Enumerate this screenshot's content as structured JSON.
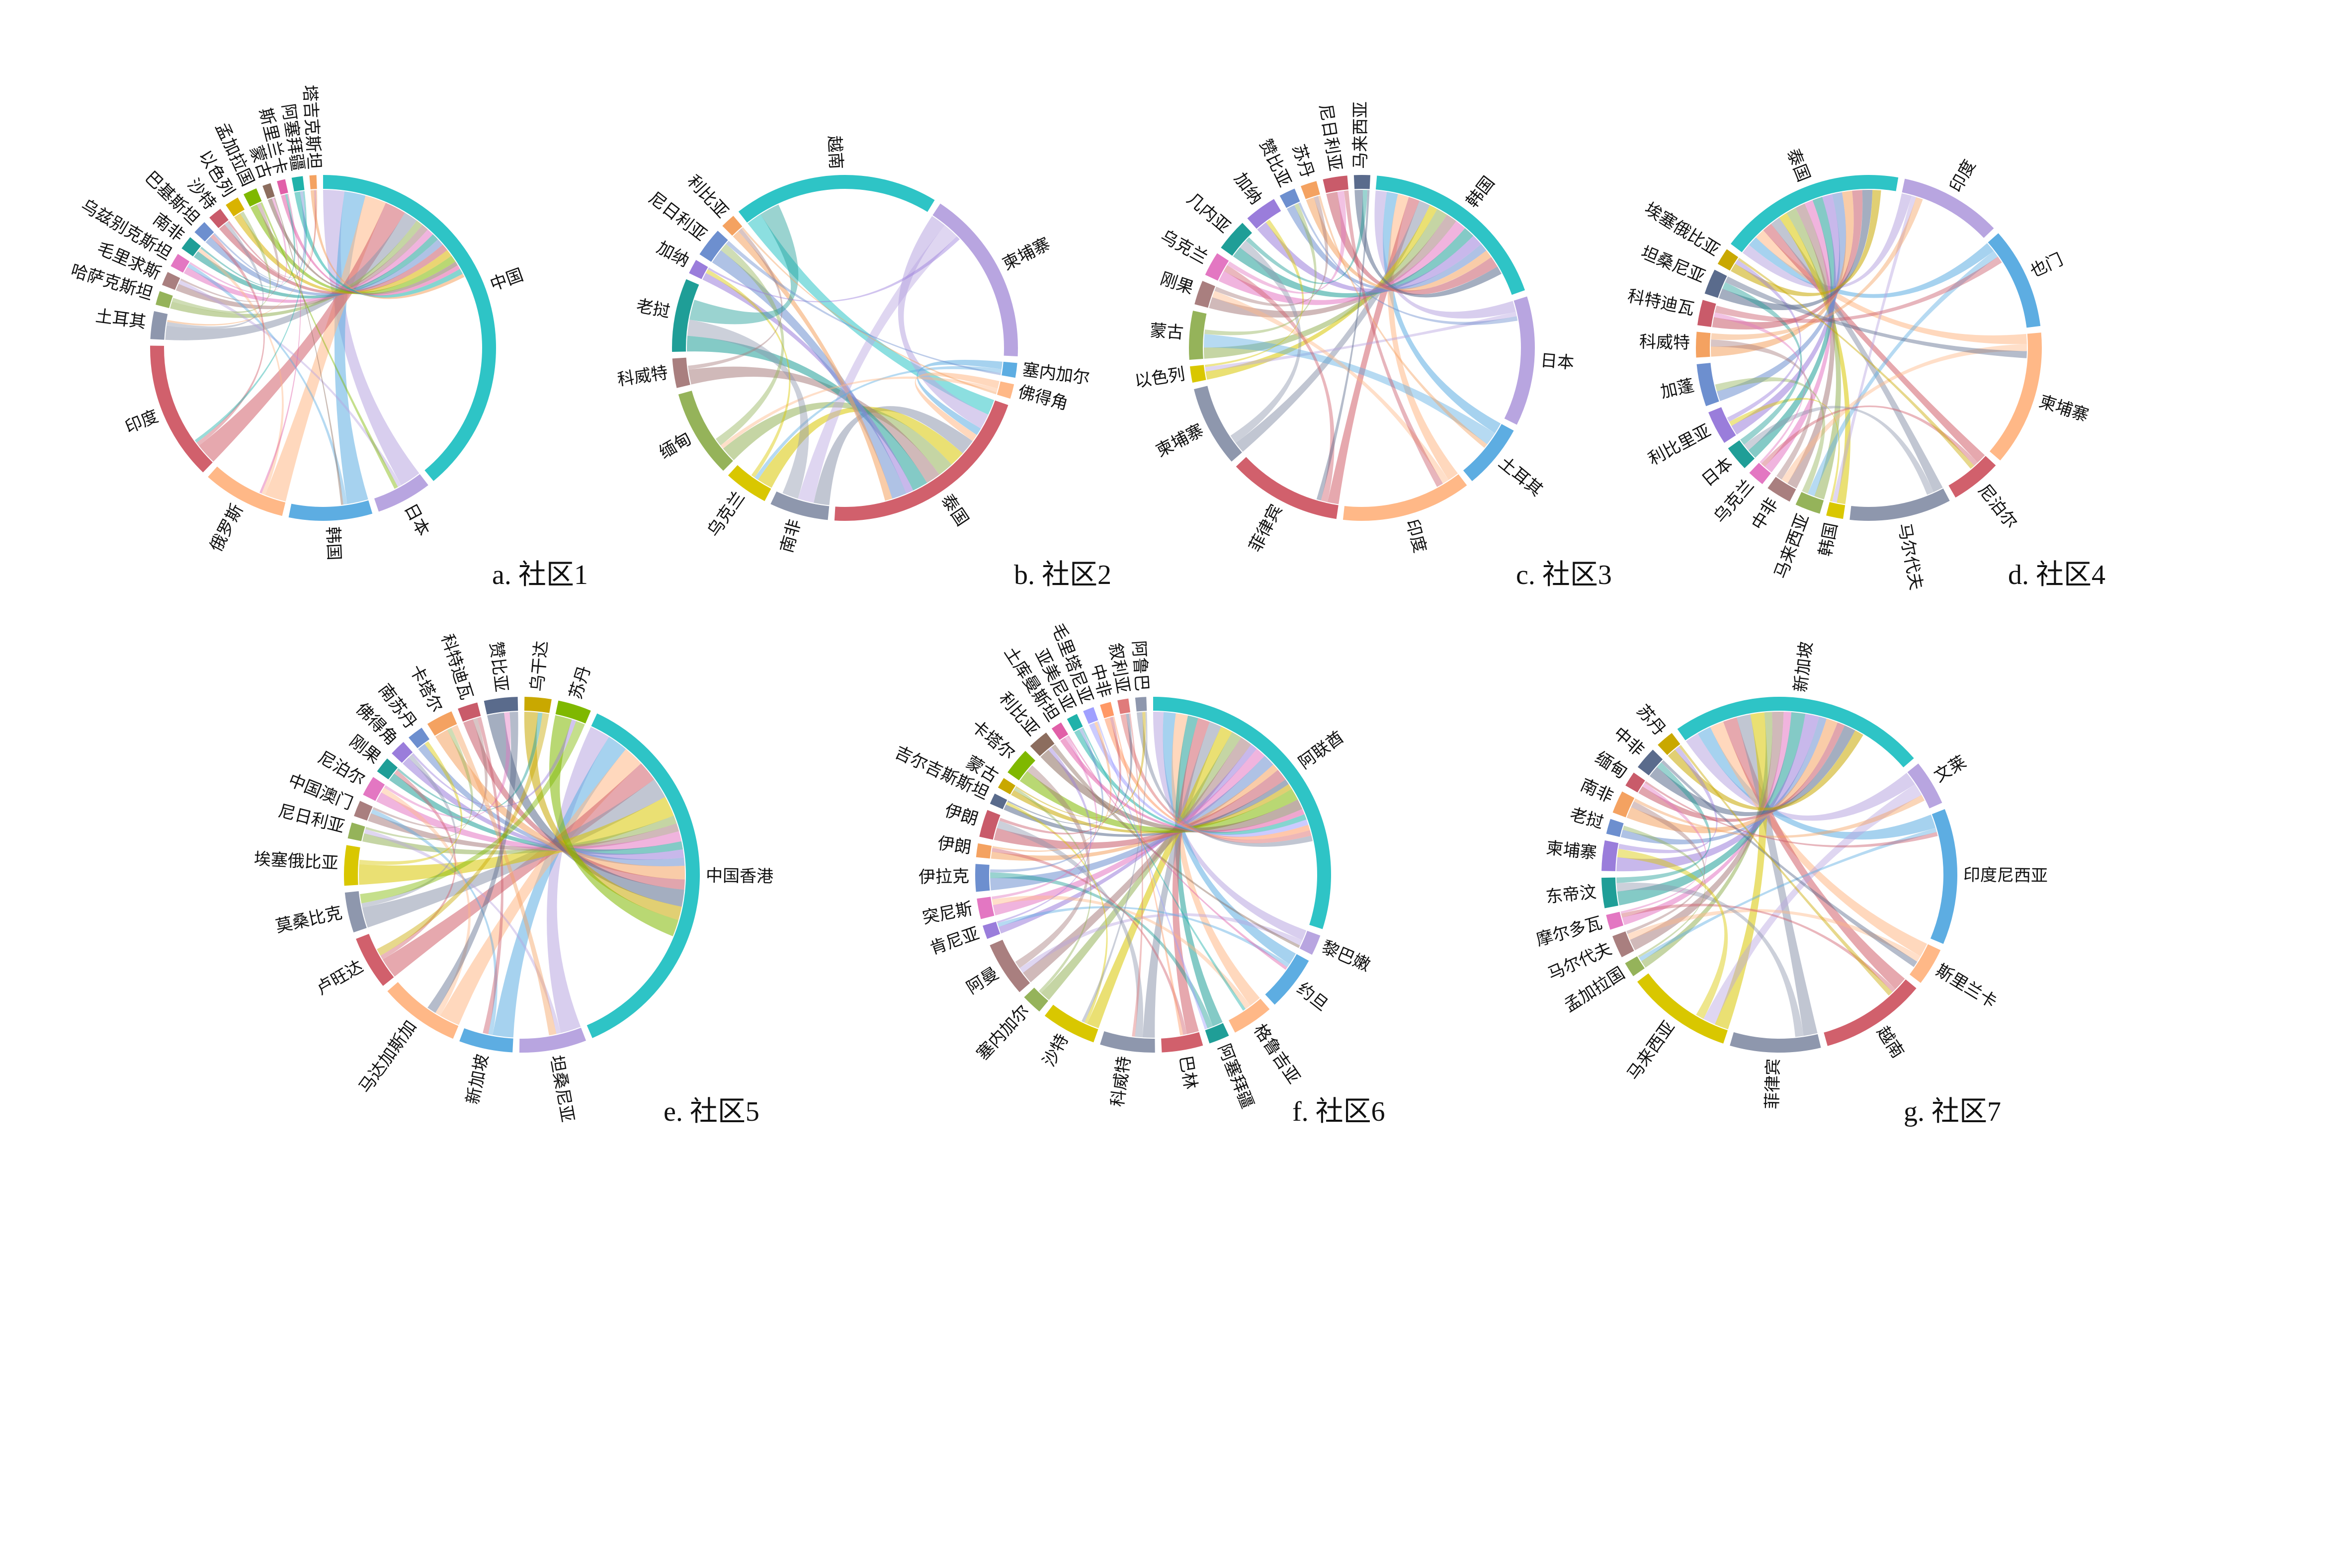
{
  "chart_data": [
    {
      "type": "chord",
      "caption": "a. 社区1",
      "nodes": [
        {
          "name": "中国",
          "value": 30,
          "color": "#2ec4c6"
        },
        {
          "name": "日本",
          "value": 4,
          "color": "#b8a5e0"
        },
        {
          "name": "韩国",
          "value": 6,
          "color": "#5dade2"
        },
        {
          "name": "俄罗斯",
          "value": 6,
          "color": "#ffb887"
        },
        {
          "name": "印度",
          "value": 10,
          "color": "#d1606c"
        },
        {
          "name": "土耳其",
          "value": 2,
          "color": "#8e97ad"
        },
        {
          "name": "哈萨克斯坦",
          "value": 1,
          "color": "#95b35a"
        },
        {
          "name": "毛里求斯",
          "value": 1,
          "color": "#a97f7f"
        },
        {
          "name": "乌兹别克斯坦",
          "value": 1,
          "color": "#e377c2"
        },
        {
          "name": "南非",
          "value": 1,
          "color": "#1f9e97"
        },
        {
          "name": "巴基斯坦",
          "value": 1,
          "color": "#6d8fcf"
        },
        {
          "name": "沙特",
          "value": 1,
          "color": "#c95b6a"
        },
        {
          "name": "以色列",
          "value": 1,
          "color": "#d9b300"
        },
        {
          "name": "孟加拉国",
          "value": 1,
          "color": "#7fb800"
        },
        {
          "name": "蒙古",
          "value": 0.6,
          "color": "#8c6d5e"
        },
        {
          "name": "斯里兰卡",
          "value": 0.6,
          "color": "#e15fa8"
        },
        {
          "name": "阿塞拜疆",
          "value": 0.8,
          "color": "#20b2aa"
        },
        {
          "name": "塔吉克斯坦",
          "value": 0.5,
          "color": "#f4a261"
        }
      ]
    },
    {
      "type": "chord",
      "caption": "b. 社区2",
      "nodes": [
        {
          "name": "越南",
          "value": 14,
          "color": "#2ec4c6"
        },
        {
          "name": "柬埔寨",
          "value": 12,
          "color": "#b8a5e0"
        },
        {
          "name": "塞内加尔",
          "value": 1,
          "color": "#5dade2"
        },
        {
          "name": "佛得角",
          "value": 1,
          "color": "#ffb887"
        },
        {
          "name": "泰国",
          "value": 15,
          "color": "#d1606c"
        },
        {
          "name": "南非",
          "value": 4,
          "color": "#8e97ad"
        },
        {
          "name": "乌克兰",
          "value": 3,
          "color": "#d9c700"
        },
        {
          "name": "缅甸",
          "value": 6,
          "color": "#95b35a"
        },
        {
          "name": "科威特",
          "value": 2,
          "color": "#a97f7f"
        },
        {
          "name": "老挝",
          "value": 5,
          "color": "#1f9e97"
        },
        {
          "name": "加纳",
          "value": 1,
          "color": "#9a7ddb"
        },
        {
          "name": "尼日利亚",
          "value": 2,
          "color": "#6d8fcf"
        },
        {
          "name": "利比亚",
          "value": 1,
          "color": "#f4a261"
        }
      ]
    },
    {
      "type": "chord",
      "caption": "c. 社区3",
      "nodes": [
        {
          "name": "韩国",
          "value": 12,
          "color": "#2ec4c6"
        },
        {
          "name": "日本",
          "value": 8,
          "color": "#b8a5e0"
        },
        {
          "name": "土耳其",
          "value": 4,
          "color": "#5dade2"
        },
        {
          "name": "印度",
          "value": 8,
          "color": "#ffb887"
        },
        {
          "name": "菲律宾",
          "value": 7,
          "color": "#d1606c"
        },
        {
          "name": "柬埔寨",
          "value": 5,
          "color": "#8e97ad"
        },
        {
          "name": "以色列",
          "value": 1,
          "color": "#d9c700"
        },
        {
          "name": "蒙古",
          "value": 3,
          "color": "#95b35a"
        },
        {
          "name": "刚果",
          "value": 1.5,
          "color": "#a97f7f"
        },
        {
          "name": "乌克兰",
          "value": 1.5,
          "color": "#e377c2"
        },
        {
          "name": "几内亚",
          "value": 2,
          "color": "#1f9e97"
        },
        {
          "name": "加纳",
          "value": 2,
          "color": "#9a7ddb"
        },
        {
          "name": "赞比亚",
          "value": 1,
          "color": "#6d8fcf"
        },
        {
          "name": "苏丹",
          "value": 1,
          "color": "#f4a261"
        },
        {
          "name": "尼日利亚",
          "value": 1.5,
          "color": "#c95b6a"
        },
        {
          "name": "马来西亚",
          "value": 1,
          "color": "#5a6b8c"
        }
      ]
    },
    {
      "type": "chord",
      "caption": "d. 社区4",
      "nodes": [
        {
          "name": "印度",
          "value": 6,
          "color": "#b8a5e0"
        },
        {
          "name": "也门",
          "value": 6,
          "color": "#5dade2"
        },
        {
          "name": "柬埔寨",
          "value": 8,
          "color": "#ffb887"
        },
        {
          "name": "尼泊尔",
          "value": 3,
          "color": "#d1606c"
        },
        {
          "name": "马尔代夫",
          "value": 6,
          "color": "#8e97ad"
        },
        {
          "name": "韩国",
          "value": 1,
          "color": "#d9c700"
        },
        {
          "name": "马来西亚",
          "value": 1.5,
          "color": "#95b35a"
        },
        {
          "name": "中非",
          "value": 1.5,
          "color": "#a97f7f"
        },
        {
          "name": "乌克兰",
          "value": 1,
          "color": "#e377c2"
        },
        {
          "name": "日本",
          "value": 1.5,
          "color": "#1f9e97"
        },
        {
          "name": "利比里亚",
          "value": 2,
          "color": "#9a7ddb"
        },
        {
          "name": "加蓬",
          "value": 2.5,
          "color": "#6d8fcf"
        },
        {
          "name": "科威特",
          "value": 1.5,
          "color": "#f4a261"
        },
        {
          "name": "科特迪瓦",
          "value": 1.5,
          "color": "#c95b6a"
        },
        {
          "name": "坦桑尼亚",
          "value": 1.5,
          "color": "#5a6b8c"
        },
        {
          "name": "埃塞俄比亚",
          "value": 1,
          "color": "#c9a800"
        },
        {
          "name": "泰国",
          "value": 11,
          "color": "#2ec4c6"
        }
      ]
    },
    {
      "type": "chord",
      "caption": "e. 社区5",
      "nodes": [
        {
          "name": "中国香港",
          "value": 30,
          "color": "#2ec4c6"
        },
        {
          "name": "坦桑尼亚",
          "value": 5,
          "color": "#b8a5e0"
        },
        {
          "name": "新加坡",
          "value": 4,
          "color": "#5dade2"
        },
        {
          "name": "马达加斯加",
          "value": 6,
          "color": "#ffb887"
        },
        {
          "name": "卢旺达",
          "value": 4,
          "color": "#d1606c"
        },
        {
          "name": "莫桑比克",
          "value": 3,
          "color": "#8e97ad"
        },
        {
          "name": "埃塞俄比亚",
          "value": 3,
          "color": "#d9c700"
        },
        {
          "name": "尼日利亚",
          "value": 1.2,
          "color": "#95b35a"
        },
        {
          "name": "中国澳门",
          "value": 1.2,
          "color": "#a97f7f"
        },
        {
          "name": "尼泊尔",
          "value": 1.5,
          "color": "#e377c2"
        },
        {
          "name": "刚果",
          "value": 1.2,
          "color": "#1f9e97"
        },
        {
          "name": "佛得角",
          "value": 1.2,
          "color": "#9a7ddb"
        },
        {
          "name": "南苏丹",
          "value": 1.2,
          "color": "#6d8fcf"
        },
        {
          "name": "卡塔尔",
          "value": 2,
          "color": "#f4a261"
        },
        {
          "name": "科特迪瓦",
          "value": 1.5,
          "color": "#c95b6a"
        },
        {
          "name": "赞比亚",
          "value": 2.5,
          "color": "#5a6b8c"
        },
        {
          "name": "乌干达",
          "value": 2,
          "color": "#c9a800"
        },
        {
          "name": "苏丹",
          "value": 2.5,
          "color": "#7fb800"
        }
      ]
    },
    {
      "type": "chord",
      "caption": "f. 社区6",
      "nodes": [
        {
          "name": "阿联酋",
          "value": 24,
          "color": "#2ec4c6"
        },
        {
          "name": "黎巴嫩",
          "value": 1.5,
          "color": "#b8a5e0"
        },
        {
          "name": "约旦",
          "value": 4,
          "color": "#5dade2"
        },
        {
          "name": "格鲁吉亚",
          "value": 3,
          "color": "#ffb887"
        },
        {
          "name": "阿塞拜疆",
          "value": 1.5,
          "color": "#1f9e97"
        },
        {
          "name": "巴林",
          "value": 3,
          "color": "#d1606c"
        },
        {
          "name": "科威特",
          "value": 4,
          "color": "#8e97ad"
        },
        {
          "name": "沙特",
          "value": 4,
          "color": "#d9c700"
        },
        {
          "name": "塞内加尔",
          "value": 1.5,
          "color": "#95b35a"
        },
        {
          "name": "阿曼",
          "value": 4,
          "color": "#a97f7f"
        },
        {
          "name": "肯尼亚",
          "value": 1,
          "color": "#9a7ddb"
        },
        {
          "name": "突尼斯",
          "value": 1.5,
          "color": "#e377c2"
        },
        {
          "name": "伊拉克",
          "value": 2,
          "color": "#6d8fcf"
        },
        {
          "name": "伊朗",
          "value": 1,
          "color": "#f4a261"
        },
        {
          "name": "伊朗",
          "value": 2,
          "color": "#c95b6a"
        },
        {
          "name": "吉尔吉斯斯坦",
          "value": 0.8,
          "color": "#5a6b8c"
        },
        {
          "name": "蒙古",
          "value": 0.8,
          "color": "#c9a800"
        },
        {
          "name": "卡塔尔",
          "value": 2,
          "color": "#7fb800"
        },
        {
          "name": "利比亚",
          "value": 1.5,
          "color": "#8c6d5e"
        },
        {
          "name": "土库曼斯坦",
          "value": 0.8,
          "color": "#e15fa8"
        },
        {
          "name": "亚美尼亚",
          "value": 0.8,
          "color": "#20b2aa"
        },
        {
          "name": "毛里塔尼亚",
          "value": 0.8,
          "color": "#a0a0ff"
        },
        {
          "name": "中非",
          "value": 0.8,
          "color": "#ff9966"
        },
        {
          "name": "叙利亚",
          "value": 0.8,
          "color": "#e07b7b"
        },
        {
          "name": "阿鲁巴",
          "value": 0.8,
          "color": "#8e97ad"
        }
      ]
    },
    {
      "type": "chord",
      "caption": "g. 社区7",
      "nodes": [
        {
          "name": "新加坡",
          "value": 17,
          "color": "#2ec4c6"
        },
        {
          "name": "文莱",
          "value": 3,
          "color": "#b8a5e0"
        },
        {
          "name": "印度尼西亚",
          "value": 9,
          "color": "#5dade2"
        },
        {
          "name": "斯里兰卡",
          "value": 2.5,
          "color": "#ffb887"
        },
        {
          "name": "越南",
          "value": 7,
          "color": "#d1606c"
        },
        {
          "name": "菲律宾",
          "value": 6,
          "color": "#8e97ad"
        },
        {
          "name": "马来西亚",
          "value": 7,
          "color": "#d9c700"
        },
        {
          "name": "孟加拉国",
          "value": 1,
          "color": "#95b35a"
        },
        {
          "name": "马尔代夫",
          "value": 1.5,
          "color": "#a97f7f"
        },
        {
          "name": "摩尔多瓦",
          "value": 1,
          "color": "#e377c2"
        },
        {
          "name": "东帝汶",
          "value": 2,
          "color": "#1f9e97"
        },
        {
          "name": "柬埔寨",
          "value": 2,
          "color": "#9a7ddb"
        },
        {
          "name": "老挝",
          "value": 1,
          "color": "#6d8fcf"
        },
        {
          "name": "南非",
          "value": 1.5,
          "color": "#f4a261"
        },
        {
          "name": "缅甸",
          "value": 1,
          "color": "#c95b6a"
        },
        {
          "name": "中非",
          "value": 1.5,
          "color": "#5a6b8c"
        },
        {
          "name": "苏丹",
          "value": 1.2,
          "color": "#c9a800"
        }
      ]
    }
  ]
}
